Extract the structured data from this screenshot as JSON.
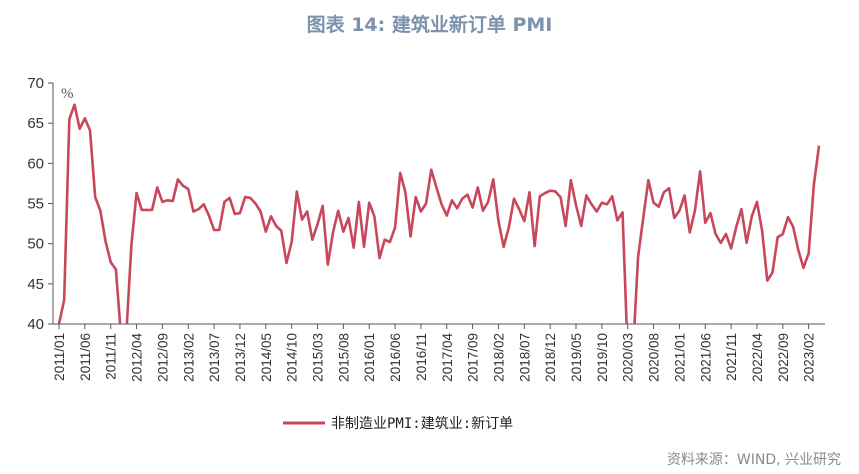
{
  "title": "图表 14: 建筑业新订单 PMI",
  "source": "资料来源：WIND, 兴业研究",
  "chart_data": {
    "type": "line",
    "unit_label": "%",
    "ylim": [
      40,
      70
    ],
    "yticks": [
      40,
      45,
      50,
      55,
      60,
      65,
      70
    ],
    "x_start": "2011/01",
    "xticks": [
      "2011/01",
      "2011/06",
      "2011/11",
      "2012/04",
      "2012/09",
      "2013/02",
      "2013/07",
      "2013/12",
      "2014/05",
      "2014/10",
      "2015/03",
      "2015/08",
      "2016/01",
      "2016/06",
      "2016/11",
      "2017/04",
      "2017/09",
      "2018/02",
      "2018/07",
      "2018/12",
      "2019/05",
      "2019/10",
      "2020/03",
      "2020/08",
      "2021/01",
      "2021/06",
      "2021/11",
      "2022/04",
      "2022/09",
      "2023/02"
    ],
    "grid": false,
    "legend": "bottom-center",
    "series": [
      {
        "name": "非制造业PMI:建筑业:新订单",
        "color": "#c8475a",
        "values": [
          40,
          43,
          65.5,
          67.3,
          64.3,
          65.6,
          64.1,
          55.8,
          54.1,
          50.3,
          47.7,
          46.8,
          38.5,
          38.5,
          49.8,
          56.3,
          54.2,
          54.2,
          54.2,
          57,
          55.2,
          55.4,
          55.3,
          58,
          57.2,
          56.8,
          54,
          54.3,
          54.9,
          53.5,
          51.7,
          51.7,
          55.2,
          55.7,
          53.7,
          53.8,
          55.8,
          55.7,
          55,
          54,
          51.5,
          53.4,
          52.2,
          51.6,
          47.6,
          50.2,
          56.5,
          53,
          54,
          50.5,
          52.4,
          54.7,
          47.4,
          51.4,
          54.1,
          51.5,
          53.2,
          49.5,
          55.2,
          49.6,
          55.1,
          53.4,
          48.2,
          50.5,
          50.2,
          52,
          58.8,
          56.4,
          50.9,
          55.8,
          54,
          55,
          59.2,
          57,
          54.9,
          53.5,
          55.4,
          54.4,
          55.6,
          56.1,
          54.5,
          57,
          54.1,
          55.2,
          58,
          52.8,
          49.6,
          52,
          55.6,
          54.3,
          52.8,
          56.4,
          49.7,
          55.9,
          56.3,
          56.6,
          56.5,
          55.8,
          52.2,
          57.9,
          54.8,
          52.2,
          56,
          54.9,
          54,
          55.1,
          54.9,
          55.9,
          52.9,
          53.9,
          36.2,
          36.2,
          48.3,
          53.2,
          57.9,
          55.1,
          54.6,
          56.4,
          56.9,
          53.2,
          54.1,
          56,
          51.4,
          54.1,
          59,
          52.6,
          53.8,
          51.2,
          50.1,
          51.2,
          49.4,
          52.1,
          54.3,
          50.1,
          53.4,
          55.2,
          51.6,
          45.4,
          46.4,
          50.8,
          51.2,
          53.3,
          52.1,
          49.2,
          47,
          48.8,
          57.3,
          62.2
        ]
      }
    ]
  }
}
